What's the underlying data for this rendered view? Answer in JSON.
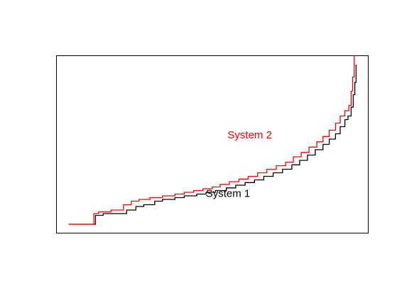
{
  "chart_data": {
    "type": "line",
    "step": true,
    "axes_visible": false,
    "grid": false,
    "xlim": [
      0,
      1
    ],
    "ylim": [
      0,
      1
    ],
    "series": [
      {
        "name": "System 1",
        "color": "#000000",
        "label_at": [
          0.55,
          0.22
        ],
        "points": [
          [
            0.04,
            0.05
          ],
          [
            0.125,
            0.05
          ],
          [
            0.125,
            0.1
          ],
          [
            0.15,
            0.1
          ],
          [
            0.15,
            0.11
          ],
          [
            0.18,
            0.11
          ],
          [
            0.19,
            0.11
          ],
          [
            0.21,
            0.11
          ],
          [
            0.225,
            0.11
          ],
          [
            0.225,
            0.13
          ],
          [
            0.255,
            0.13
          ],
          [
            0.255,
            0.15
          ],
          [
            0.28,
            0.15
          ],
          [
            0.28,
            0.16
          ],
          [
            0.315,
            0.16
          ],
          [
            0.315,
            0.18
          ],
          [
            0.34,
            0.18
          ],
          [
            0.34,
            0.19
          ],
          [
            0.38,
            0.19
          ],
          [
            0.38,
            0.2
          ],
          [
            0.41,
            0.2
          ],
          [
            0.41,
            0.21
          ],
          [
            0.45,
            0.21
          ],
          [
            0.45,
            0.22
          ],
          [
            0.48,
            0.22
          ],
          [
            0.48,
            0.23
          ],
          [
            0.51,
            0.23
          ],
          [
            0.51,
            0.24
          ],
          [
            0.545,
            0.24
          ],
          [
            0.545,
            0.255
          ],
          [
            0.575,
            0.255
          ],
          [
            0.575,
            0.27
          ],
          [
            0.605,
            0.27
          ],
          [
            0.605,
            0.285
          ],
          [
            0.635,
            0.285
          ],
          [
            0.635,
            0.3
          ],
          [
            0.665,
            0.3
          ],
          [
            0.665,
            0.32
          ],
          [
            0.695,
            0.32
          ],
          [
            0.695,
            0.34
          ],
          [
            0.725,
            0.34
          ],
          [
            0.725,
            0.36
          ],
          [
            0.755,
            0.36
          ],
          [
            0.755,
            0.385
          ],
          [
            0.78,
            0.385
          ],
          [
            0.78,
            0.41
          ],
          [
            0.805,
            0.41
          ],
          [
            0.805,
            0.44
          ],
          [
            0.83,
            0.44
          ],
          [
            0.83,
            0.47
          ],
          [
            0.855,
            0.47
          ],
          [
            0.855,
            0.5
          ],
          [
            0.875,
            0.5
          ],
          [
            0.875,
            0.53
          ],
          [
            0.895,
            0.53
          ],
          [
            0.895,
            0.56
          ],
          [
            0.91,
            0.56
          ],
          [
            0.91,
            0.6
          ],
          [
            0.925,
            0.6
          ],
          [
            0.925,
            0.64
          ],
          [
            0.935,
            0.64
          ],
          [
            0.935,
            0.66
          ],
          [
            0.945,
            0.66
          ],
          [
            0.945,
            0.71
          ],
          [
            0.952,
            0.71
          ],
          [
            0.952,
            0.78
          ],
          [
            0.957,
            0.78
          ],
          [
            0.957,
            0.85
          ],
          [
            0.961,
            0.85
          ],
          [
            0.961,
            0.95
          ]
        ]
      },
      {
        "name": "System 2",
        "color": "#ff0000",
        "label_at": [
          0.62,
          0.55
        ],
        "points": [
          [
            0.04,
            0.05
          ],
          [
            0.12,
            0.05
          ],
          [
            0.12,
            0.11
          ],
          [
            0.135,
            0.11
          ],
          [
            0.135,
            0.12
          ],
          [
            0.175,
            0.12
          ],
          [
            0.175,
            0.13
          ],
          [
            0.215,
            0.13
          ],
          [
            0.215,
            0.16
          ],
          [
            0.24,
            0.16
          ],
          [
            0.24,
            0.18
          ],
          [
            0.265,
            0.18
          ],
          [
            0.265,
            0.19
          ],
          [
            0.3,
            0.19
          ],
          [
            0.3,
            0.2
          ],
          [
            0.34,
            0.2
          ],
          [
            0.34,
            0.21
          ],
          [
            0.38,
            0.21
          ],
          [
            0.38,
            0.22
          ],
          [
            0.41,
            0.22
          ],
          [
            0.41,
            0.23
          ],
          [
            0.44,
            0.23
          ],
          [
            0.44,
            0.24
          ],
          [
            0.47,
            0.24
          ],
          [
            0.47,
            0.25
          ],
          [
            0.5,
            0.25
          ],
          [
            0.5,
            0.26
          ],
          [
            0.525,
            0.26
          ],
          [
            0.525,
            0.275
          ],
          [
            0.555,
            0.275
          ],
          [
            0.555,
            0.29
          ],
          [
            0.585,
            0.29
          ],
          [
            0.585,
            0.305
          ],
          [
            0.615,
            0.305
          ],
          [
            0.615,
            0.32
          ],
          [
            0.645,
            0.32
          ],
          [
            0.645,
            0.34
          ],
          [
            0.675,
            0.34
          ],
          [
            0.675,
            0.36
          ],
          [
            0.705,
            0.36
          ],
          [
            0.705,
            0.38
          ],
          [
            0.735,
            0.38
          ],
          [
            0.735,
            0.4
          ],
          [
            0.76,
            0.4
          ],
          [
            0.76,
            0.43
          ],
          [
            0.785,
            0.43
          ],
          [
            0.785,
            0.455
          ],
          [
            0.81,
            0.455
          ],
          [
            0.81,
            0.485
          ],
          [
            0.835,
            0.485
          ],
          [
            0.835,
            0.515
          ],
          [
            0.855,
            0.515
          ],
          [
            0.855,
            0.545
          ],
          [
            0.875,
            0.545
          ],
          [
            0.875,
            0.58
          ],
          [
            0.895,
            0.58
          ],
          [
            0.895,
            0.62
          ],
          [
            0.91,
            0.62
          ],
          [
            0.91,
            0.66
          ],
          [
            0.925,
            0.66
          ],
          [
            0.925,
            0.69
          ],
          [
            0.938,
            0.69
          ],
          [
            0.938,
            0.72
          ],
          [
            0.945,
            0.72
          ],
          [
            0.945,
            0.8
          ],
          [
            0.95,
            0.8
          ],
          [
            0.95,
            0.88
          ],
          [
            0.955,
            0.88
          ],
          [
            0.955,
            1.0
          ]
        ]
      }
    ]
  }
}
